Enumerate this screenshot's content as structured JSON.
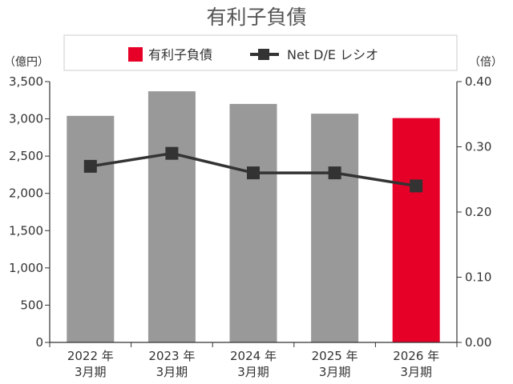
{
  "chart_data": {
    "type": "bar",
    "title": "有利子負債",
    "categories": [
      {
        "year": "2022 年",
        "month": "3月期"
      },
      {
        "year": "2023 年",
        "month": "3月期"
      },
      {
        "year": "2024 年",
        "month": "3月期"
      },
      {
        "year": "2025 年",
        "month": "3月期"
      },
      {
        "year": "2026 年",
        "month": "3月期"
      }
    ],
    "series": [
      {
        "name": "有利子負債",
        "type": "bar",
        "axis": "left",
        "values": [
          3040,
          3370,
          3200,
          3070,
          3010
        ],
        "colors": [
          "#999999",
          "#999999",
          "#999999",
          "#999999",
          "#e60028"
        ]
      },
      {
        "name": "Net D/E レシオ",
        "type": "line",
        "axis": "right",
        "values": [
          0.27,
          0.29,
          0.26,
          0.26,
          0.24
        ],
        "color": "#333333",
        "marker": "square"
      }
    ],
    "left_axis": {
      "unit": "（億円）",
      "ylim": [
        0,
        3500
      ],
      "ticks": [
        "0",
        "500",
        "1,000",
        "1,500",
        "2,000",
        "2,500",
        "3,000",
        "3,500"
      ],
      "tick_values": [
        0,
        500,
        1000,
        1500,
        2000,
        2500,
        3000,
        3500
      ]
    },
    "right_axis": {
      "unit": "（倍）",
      "ylim": [
        0,
        0.4
      ],
      "ticks": [
        "0.00",
        "0.10",
        "0.20",
        "0.30",
        "0.40"
      ],
      "tick_values": [
        0,
        0.1,
        0.2,
        0.3,
        0.4
      ]
    },
    "legend": {
      "placement": "top-center",
      "items": [
        {
          "label": "有利子負債",
          "swatch": "#e60028"
        },
        {
          "label": "Net D/E レシオ",
          "swatch": "#333333"
        }
      ]
    },
    "grid": false,
    "colors": {
      "gray_bar": "#999999",
      "highlight_bar": "#e60028",
      "line": "#333333",
      "legend_border": "#cccccc"
    }
  }
}
